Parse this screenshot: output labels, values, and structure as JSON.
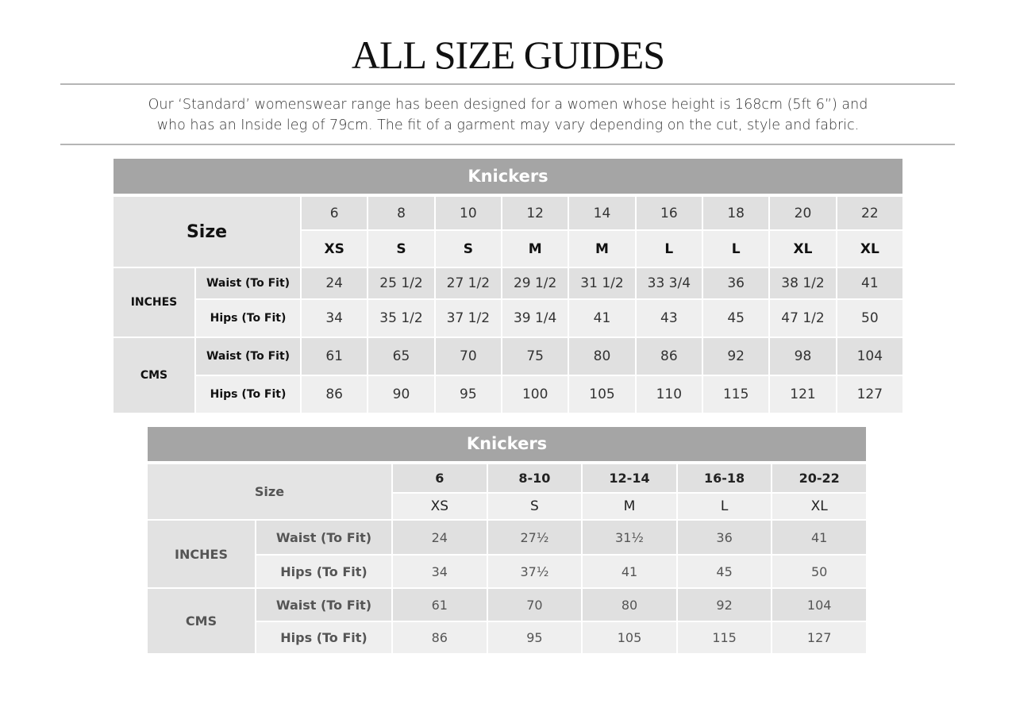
{
  "page": {
    "title": "ALL SIZE GUIDES",
    "intro_line1": "Our ‘Standard’ womenswear range has been designed for a women whose height is 168cm (5ft 6”) and",
    "intro_line2": "who has an Inside leg of 79cm. The fit of a garment may vary depending on the cut, style and fabric."
  },
  "tables": [
    {
      "title": "Knickers",
      "size_label": "Size",
      "sizes": [
        "6",
        "8",
        "10",
        "12",
        "14",
        "16",
        "18",
        "20",
        "22"
      ],
      "letters": [
        "XS",
        "S",
        "S",
        "M",
        "M",
        "L",
        "L",
        "XL",
        "XL"
      ],
      "groups": [
        {
          "label": "INCHES",
          "rows": [
            {
              "label": "Waist (To Fit)",
              "values": [
                "24",
                "25 1/2",
                "27 1/2",
                "29 1/2",
                "31 1/2",
                "33 3/4",
                "36",
                "38 1/2",
                "41"
              ]
            },
            {
              "label": "Hips (To Fit)",
              "values": [
                "34",
                "35 1/2",
                "37 1/2",
                "39 1/4",
                "41",
                "43",
                "45",
                "47 1/2",
                "50"
              ]
            }
          ]
        },
        {
          "label": "CMS",
          "rows": [
            {
              "label": "Waist (To Fit)",
              "values": [
                "61",
                "65",
                "70",
                "75",
                "80",
                "86",
                "92",
                "98",
                "104"
              ]
            },
            {
              "label": "Hips (To Fit)",
              "values": [
                "86",
                "90",
                "95",
                "100",
                "105",
                "110",
                "115",
                "121",
                "127"
              ]
            }
          ]
        }
      ]
    },
    {
      "title": "Knickers",
      "size_label": "Size",
      "sizes": [
        "6",
        "8-10",
        "12-14",
        "16-18",
        "20-22"
      ],
      "letters": [
        "XS",
        "S",
        "M",
        "L",
        "XL"
      ],
      "groups": [
        {
          "label": "INCHES",
          "rows": [
            {
              "label": "Waist (To Fit)",
              "values": [
                "24",
                "27½",
                "31½",
                "36",
                "41"
              ]
            },
            {
              "label": "Hips (To Fit)",
              "values": [
                "34",
                "37½",
                "41",
                "45",
                "50"
              ]
            }
          ]
        },
        {
          "label": "CMS",
          "rows": [
            {
              "label": "Waist (To Fit)",
              "values": [
                "61",
                "70",
                "80",
                "92",
                "104"
              ]
            },
            {
              "label": "Hips (To Fit)",
              "values": [
                "86",
                "95",
                "105",
                "115",
                "127"
              ]
            }
          ]
        }
      ]
    }
  ]
}
